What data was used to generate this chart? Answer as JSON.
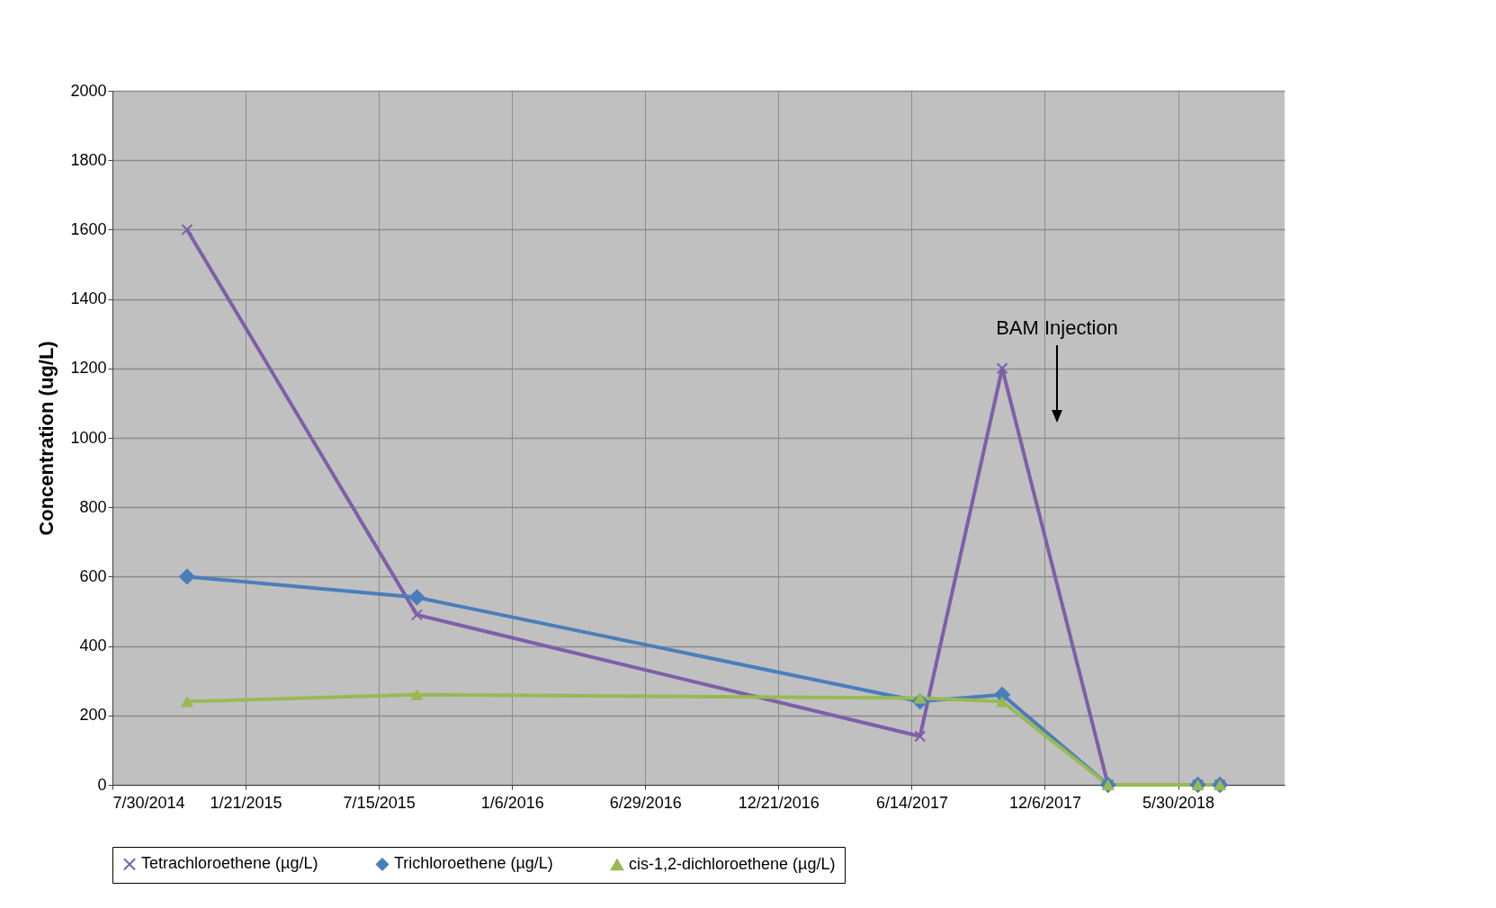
{
  "chart_data": {
    "type": "line",
    "ylabel": "Concentration (ug/L)",
    "series": [
      {
        "name": "Tetrachloroethene (µg/L)",
        "color": "#7f5fa8",
        "marker": "cross",
        "x": [
          "2014-11-05",
          "2015-09-03",
          "2017-06-25",
          "2017-10-11",
          "2018-02-27",
          "2018-06-25",
          "2018-07-24"
        ],
        "values": [
          1600,
          490,
          140,
          1200,
          0,
          0,
          0
        ]
      },
      {
        "name": "Trichloroethene (µg/L)",
        "color": "#4a7ebb",
        "marker": "diamond",
        "x": [
          "2014-11-05",
          "2015-09-03",
          "2017-06-25",
          "2017-10-11",
          "2018-02-27",
          "2018-06-25",
          "2018-07-24"
        ],
        "values": [
          600,
          540,
          240,
          260,
          0,
          0,
          0
        ]
      },
      {
        "name": "cis-1,2-dichloroethene (µg/L)",
        "color": "#98b954",
        "marker": "triangle",
        "x": [
          "2014-11-05",
          "2015-09-03",
          "2017-06-25",
          "2017-10-11",
          "2018-02-27",
          "2018-06-25",
          "2018-07-24"
        ],
        "values": [
          240,
          260,
          250,
          240,
          0,
          0,
          0
        ]
      }
    ],
    "xlim": [
      "2014-07-30",
      "2018-10-17"
    ],
    "xticks": [
      {
        "value": "2014-07-30",
        "label": "7/30/2014"
      },
      {
        "value": "2015-01-21",
        "label": "1/21/2015"
      },
      {
        "value": "2015-07-15",
        "label": "7/15/2015"
      },
      {
        "value": "2016-01-06",
        "label": "1/6/2016"
      },
      {
        "value": "2016-06-29",
        "label": "6/29/2016"
      },
      {
        "value": "2016-12-21",
        "label": "12/21/2016"
      },
      {
        "value": "2017-06-14",
        "label": "6/14/2017"
      },
      {
        "value": "2017-12-06",
        "label": "12/6/2017"
      },
      {
        "value": "2018-05-30",
        "label": "5/30/2018"
      }
    ],
    "ylim": [
      0,
      2000
    ],
    "yticks": [
      0,
      200,
      400,
      600,
      800,
      1000,
      1200,
      1400,
      1600,
      1800,
      2000
    ],
    "grid": true,
    "legend": "bottom",
    "line_style": "solid",
    "annotations": [
      "BAM Injection"
    ]
  }
}
